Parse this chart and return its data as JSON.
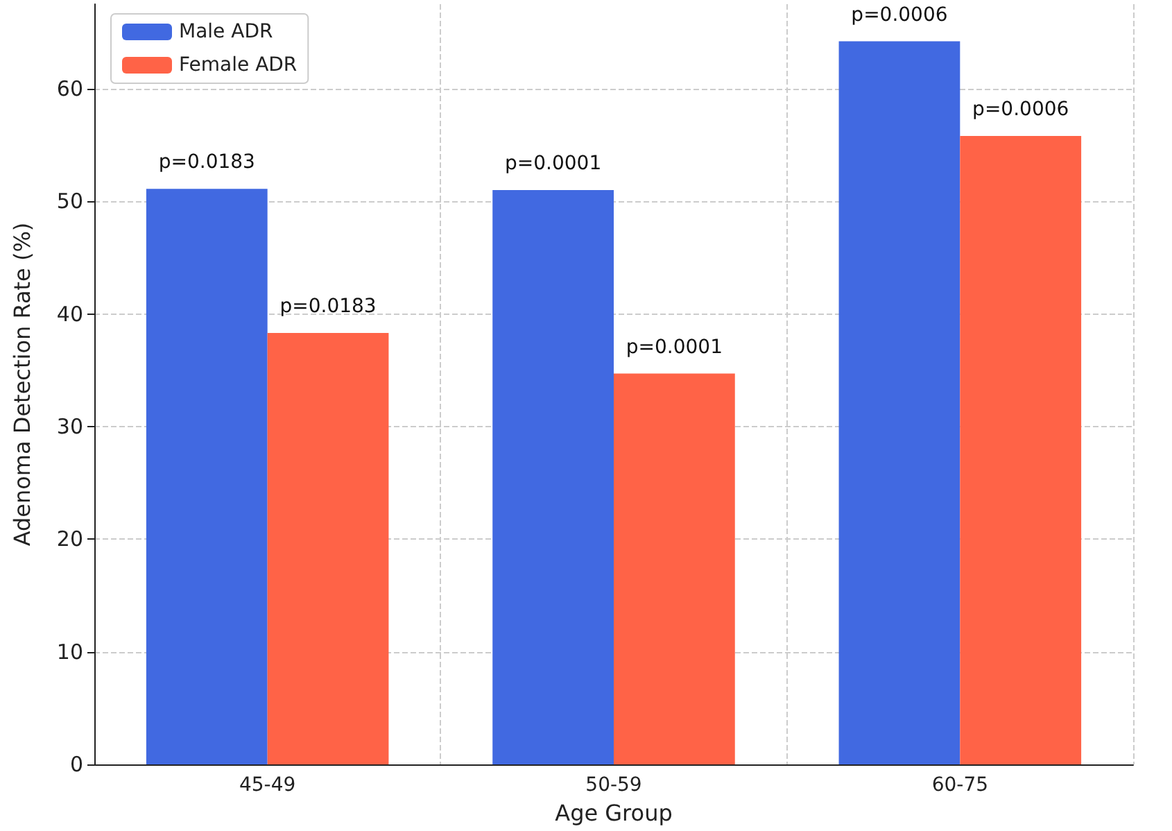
{
  "chart_data": {
    "type": "bar",
    "xlabel": "Age Group",
    "ylabel": "Adenoma Detection Rate (%)",
    "categories": [
      "45-49",
      "50-59",
      "60-75"
    ],
    "series": [
      {
        "name": "Male ADR",
        "color": "#4169e1",
        "values": [
          51.1,
          51.0,
          64.2
        ]
      },
      {
        "name": "Female ADR",
        "color": "#ff6347",
        "values": [
          38.3,
          34.7,
          55.8
        ]
      }
    ],
    "annotations": [
      {
        "text": "p=0.0183",
        "x": "45-49",
        "y": 51.1
      },
      {
        "text": "p=0.0183",
        "x": "45-49",
        "y": 38.3
      },
      {
        "text": "p=0.0001",
        "x": "50-59",
        "y": 51.0
      },
      {
        "text": "p=0.0001",
        "x": "50-59",
        "y": 34.7
      },
      {
        "text": "p=0.0006",
        "x": "60-75",
        "y": 64.2
      },
      {
        "text": "p=0.0006",
        "x": "60-75",
        "y": 55.8
      }
    ],
    "ylim": [
      0,
      67.5
    ],
    "yticks": [
      0,
      10,
      20,
      30,
      40,
      50,
      60
    ],
    "grid": true,
    "legend": "top left"
  }
}
